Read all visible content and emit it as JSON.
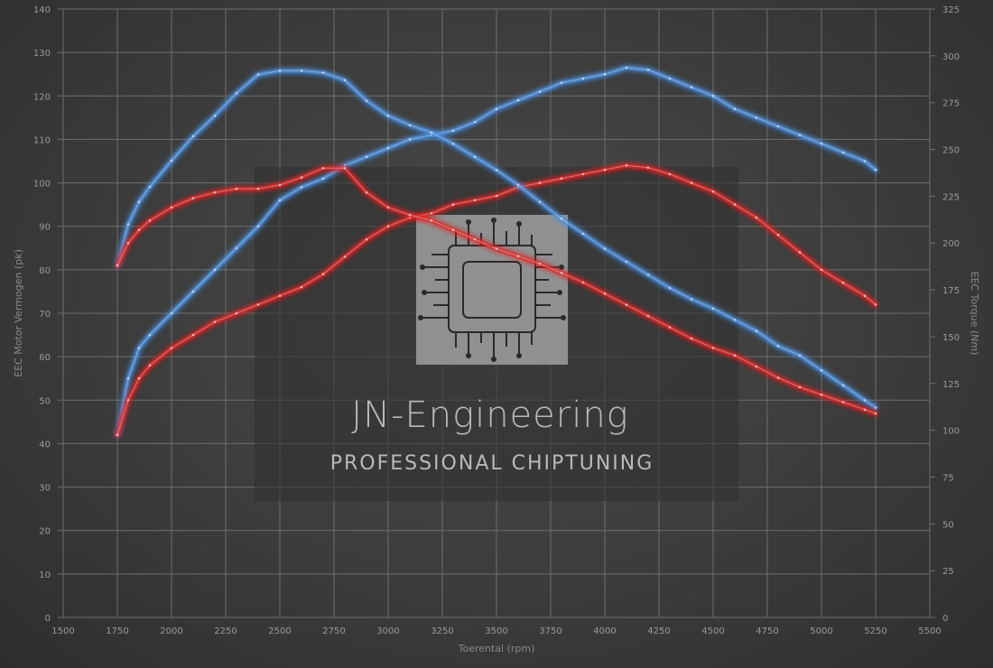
{
  "watermark": {
    "title": "JN-Engineering",
    "subtitle": "PROFESSIONAL CHIPTUNING"
  },
  "chart_data": {
    "type": "line",
    "title": "",
    "xlabel": "Toerental (rpm)",
    "ylabel_left": "EEC Motor Vermogen (pk)",
    "ylabel_right": "EEC Torque (Nm)",
    "xlim": [
      1500,
      5500
    ],
    "ylim_left": [
      0,
      140
    ],
    "ylim_right": [
      0,
      325
    ],
    "x_ticks": [
      1500,
      1750,
      2000,
      2250,
      2500,
      2750,
      3000,
      3250,
      3500,
      3750,
      4000,
      4250,
      4500,
      4750,
      5000,
      5250,
      5500
    ],
    "y_ticks_left": [
      0,
      10,
      20,
      30,
      40,
      50,
      60,
      70,
      80,
      90,
      100,
      110,
      120,
      130,
      140
    ],
    "y_ticks_right": [
      0,
      25,
      50,
      75,
      100,
      125,
      150,
      175,
      200,
      225,
      250,
      275,
      300,
      325
    ],
    "grid": true,
    "colors": {
      "tuned": "#4a90e2",
      "stock": "#e02424"
    },
    "series": [
      {
        "axis": "left",
        "color": "#4a90e2",
        "x": [
          1750,
          1800,
          1850,
          1900,
          2000,
          2100,
          2200,
          2300,
          2400,
          2500,
          2600,
          2700,
          2800,
          2900,
          3000,
          3100,
          3200,
          3300,
          3400,
          3500,
          3600,
          3700,
          3800,
          3900,
          4000,
          4100,
          4200,
          4300,
          4400,
          4500,
          4600,
          4700,
          4800,
          4900,
          5000,
          5100,
          5200,
          5250
        ],
        "values": [
          42,
          55,
          62,
          65,
          70,
          75,
          80,
          85,
          90,
          96,
          99,
          101,
          104,
          106,
          108,
          110,
          111,
          112,
          114,
          117,
          119,
          121,
          123,
          124,
          125,
          126.5,
          126,
          124,
          122,
          120,
          117,
          115,
          113,
          111,
          109,
          107,
          105,
          103
        ]
      },
      {
        "axis": "left",
        "color": "#e02424",
        "x": [
          1750,
          1800,
          1850,
          1900,
          2000,
          2100,
          2200,
          2300,
          2400,
          2500,
          2600,
          2700,
          2800,
          2900,
          3000,
          3100,
          3200,
          3300,
          3400,
          3500,
          3600,
          3700,
          3800,
          3900,
          4000,
          4100,
          4200,
          4300,
          4400,
          4500,
          4600,
          4700,
          4800,
          4900,
          5000,
          5100,
          5200,
          5250
        ],
        "values": [
          42,
          50,
          55,
          58,
          62,
          65,
          68,
          70,
          72,
          74,
          76,
          79,
          83,
          87,
          90,
          92,
          93,
          95,
          96,
          97,
          99,
          100,
          101,
          102,
          103,
          104,
          103.5,
          102,
          100,
          98,
          95,
          92,
          88,
          84,
          80,
          77,
          74,
          72
        ]
      },
      {
        "axis": "right",
        "color": "#4a90e2",
        "x": [
          1750,
          1800,
          1850,
          1900,
          2000,
          2100,
          2200,
          2300,
          2400,
          2500,
          2600,
          2700,
          2800,
          2900,
          3000,
          3100,
          3200,
          3300,
          3400,
          3500,
          3600,
          3700,
          3800,
          3900,
          4000,
          4100,
          4200,
          4300,
          4400,
          4500,
          4600,
          4700,
          4800,
          4900,
          5000,
          5100,
          5200,
          5250
        ],
        "values": [
          188,
          210,
          222,
          230,
          244,
          257,
          268,
          280,
          290,
          292,
          292,
          291,
          287,
          276,
          268,
          263,
          259,
          253,
          246,
          239,
          231,
          222,
          213,
          205,
          197,
          190,
          183,
          176,
          170,
          165,
          159,
          153,
          145,
          140,
          132,
          124,
          116,
          112
        ]
      },
      {
        "axis": "right",
        "color": "#e02424",
        "x": [
          1750,
          1800,
          1850,
          1900,
          2000,
          2100,
          2200,
          2300,
          2400,
          2500,
          2600,
          2700,
          2800,
          2900,
          3000,
          3100,
          3200,
          3300,
          3400,
          3500,
          3600,
          3700,
          3800,
          3900,
          4000,
          4100,
          4200,
          4300,
          4400,
          4500,
          4600,
          4700,
          4800,
          4900,
          5000,
          5100,
          5200,
          5250
        ],
        "values": [
          188,
          200,
          207,
          212,
          219,
          224,
          227,
          229,
          229,
          231,
          235,
          240,
          240,
          227,
          219,
          215,
          212,
          207,
          202,
          197,
          193,
          189,
          184,
          179,
          173,
          167,
          161,
          155,
          149,
          144,
          140,
          134,
          128,
          123,
          119,
          115,
          111,
          109
        ]
      }
    ]
  }
}
